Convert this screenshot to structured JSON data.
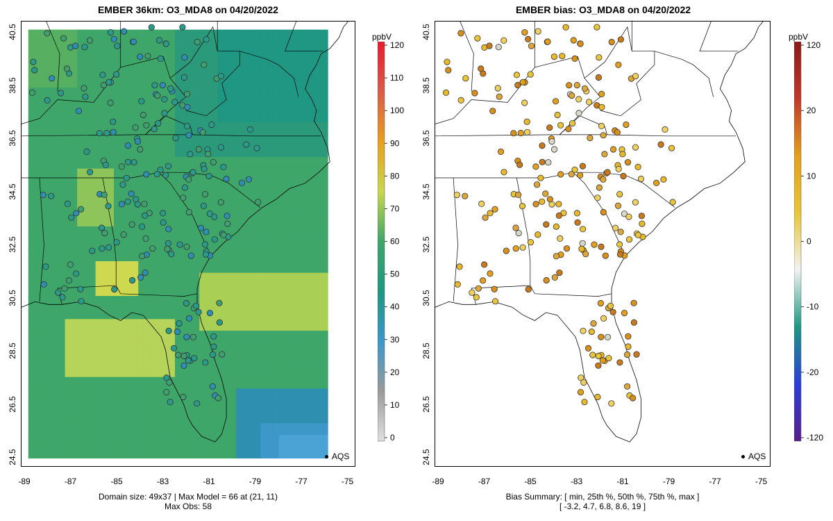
{
  "left_panel": {
    "title": "EMBER 36km: O3_MDA8 on 04/20/2022",
    "footer_line1": "Domain size: 49x37 | Max Model = 66 at (21, 11)",
    "footer_line2": "Max Obs: 58",
    "legend_label": "AQS",
    "colorbar": {
      "title": "ppbV",
      "ticks": [
        "0",
        "10",
        "20",
        "30",
        "40",
        "50",
        "60",
        "70",
        "80",
        "90",
        "100",
        "110",
        "120"
      ]
    }
  },
  "right_panel": {
    "title": "EMBER bias: O3_MDA8 on 04/20/2022",
    "footer_line1": "Bias Summary: [ min, 25th %, 50th %, 75th %, max ]",
    "footer_line2": "[ -3.2,   4.7,   6.8,   8.6,   19 ]",
    "legend_label": "AQS",
    "colorbar": {
      "title": "ppbV",
      "ticks": [
        "120",
        "20",
        "10",
        "0",
        "-10",
        "-20",
        "-120"
      ]
    }
  },
  "axes": {
    "lat_ticks": [
      "40.5",
      "38.5",
      "36.5",
      "34.5",
      "32.5",
      "30.5",
      "28.5",
      "26.5",
      "24.5"
    ],
    "lon_ticks": [
      "-89",
      "-87",
      "-85",
      "-83",
      "-81",
      "-79",
      "-77",
      "-75"
    ]
  },
  "colors": {
    "model_green": "#3fa66a",
    "model_teal": "#1f9d7f",
    "model_yellow": "#c9d64f",
    "model_blue": "#3d97c9",
    "obs_teal": "#2a9a8a",
    "bias_orange": "#e2a01e",
    "bias_yellow": "#e8c53a"
  },
  "map_elements": {
    "model_grid_name": "model-grid",
    "coast_name": "coastline",
    "states_name": "state-borders"
  }
}
